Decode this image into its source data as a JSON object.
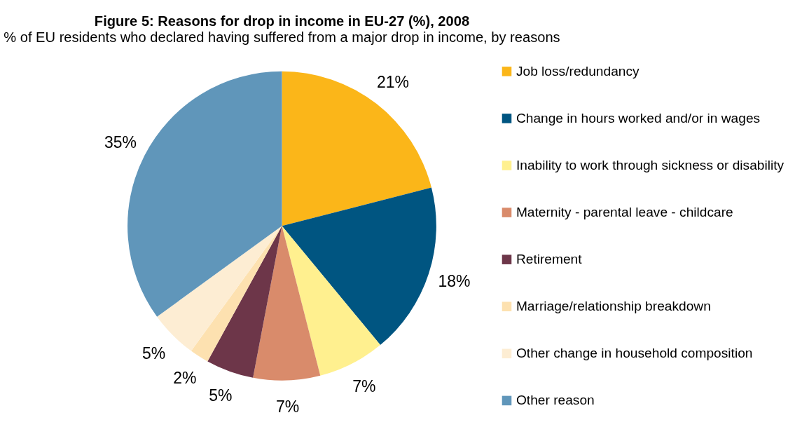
{
  "chart_data": {
    "type": "pie",
    "title": "Figure 5: Reasons for drop in income in EU-27 (%), 2008",
    "subtitle": "% of EU residents who declared having suffered from a major drop in income, by reasons",
    "categories": [
      "Job loss/redundancy",
      "Change in hours worked and/or in wages",
      "Inability to work through sickness or disability",
      "Maternity - parental leave - childcare",
      "Retirement",
      "Marriage/relationship breakdown",
      "Other change in household composition",
      "Other reason"
    ],
    "values": [
      21,
      18,
      7,
      7,
      5,
      2,
      5,
      35
    ],
    "value_labels": [
      "21%",
      "18%",
      "7%",
      "7%",
      "5%",
      "2%",
      "5%",
      "35%"
    ],
    "colors": [
      "#fbb619",
      "#005581",
      "#fff08f",
      "#d98b6b",
      "#6d3649",
      "#fde1b0",
      "#fdedd3",
      "#6096ba"
    ],
    "legend": "right"
  }
}
